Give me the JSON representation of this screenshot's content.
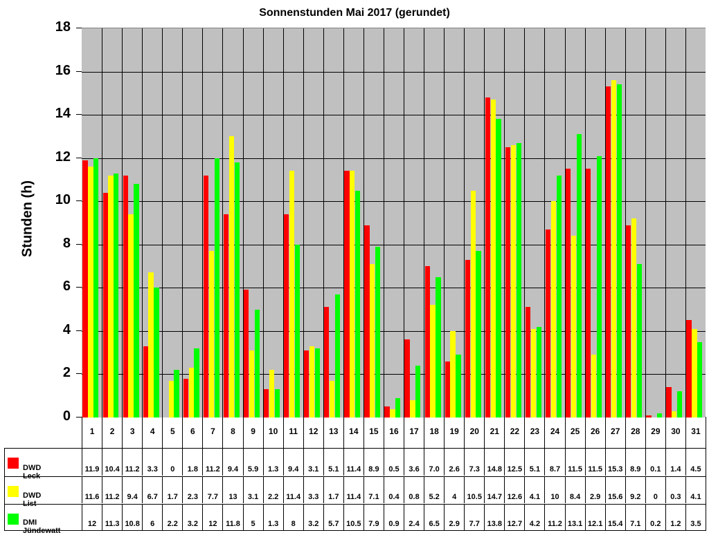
{
  "chart_data": {
    "type": "bar",
    "title": "Sonnenstunden Mai 2017 (gerundet)",
    "xlabel": "",
    "ylabel": "Stunden (h)",
    "ylim": [
      0,
      18
    ],
    "yticks": [
      0,
      2,
      4,
      6,
      8,
      10,
      12,
      14,
      16,
      18
    ],
    "grid": true,
    "legend_position": "data-table",
    "categories": [
      "1",
      "2",
      "3",
      "4",
      "5",
      "6",
      "7",
      "8",
      "9",
      "10",
      "11",
      "12",
      "13",
      "14",
      "15",
      "16",
      "17",
      "18",
      "19",
      "20",
      "21",
      "22",
      "23",
      "24",
      "25",
      "26",
      "27",
      "28",
      "29",
      "30",
      "31"
    ],
    "series": [
      {
        "name": "DWD Leck",
        "color": "#ff0000",
        "labels": [
          "11.9",
          "10.4",
          "11.2",
          "3.3",
          "0",
          "1.8",
          "11.2",
          "9.4",
          "5.9",
          "1.3",
          "9.4",
          "3.1",
          "5.1",
          "11.4",
          "8.9",
          "0.5",
          "3.6",
          "7.0",
          "2.6",
          "7.3",
          "14.8",
          "12.5",
          "5.1",
          "8.7",
          "11.5",
          "11.5",
          "15.3",
          "8.9",
          "0.1",
          "1.4",
          "4.5"
        ],
        "values": [
          11.9,
          10.4,
          11.2,
          3.3,
          0,
          1.8,
          11.2,
          9.4,
          5.9,
          1.3,
          9.4,
          3.1,
          5.1,
          11.4,
          8.9,
          0.5,
          3.6,
          7.0,
          2.6,
          7.3,
          14.8,
          12.5,
          5.1,
          8.7,
          11.5,
          11.5,
          15.3,
          8.9,
          0.1,
          1.4,
          4.5
        ]
      },
      {
        "name": "DWD List",
        "color": "#ffff00",
        "labels": [
          "11.6",
          "11.2",
          "9.4",
          "6.7",
          "1.7",
          "2.3",
          "7.7",
          "13",
          "3.1",
          "2.2",
          "11.4",
          "3.3",
          "1.7",
          "11.4",
          "7.1",
          "0.4",
          "0.8",
          "5.2",
          "4",
          "10.5",
          "14.7",
          "12.6",
          "4.1",
          "10",
          "8.4",
          "2.9",
          "15.6",
          "9.2",
          "0",
          "0.3",
          "4.1"
        ],
        "values": [
          11.6,
          11.2,
          9.4,
          6.7,
          1.7,
          2.3,
          7.7,
          13,
          3.1,
          2.2,
          11.4,
          3.3,
          1.7,
          11.4,
          7.1,
          0.4,
          0.8,
          5.2,
          4,
          10.5,
          14.7,
          12.6,
          4.1,
          10,
          8.4,
          2.9,
          15.6,
          9.2,
          0,
          0.3,
          4.1
        ]
      },
      {
        "name": "DMI Jündewatt",
        "color": "#00ff00",
        "labels": [
          "12",
          "11.3",
          "10.8",
          "6",
          "2.2",
          "3.2",
          "12",
          "11.8",
          "5",
          "1.3",
          "8",
          "3.2",
          "5.7",
          "10.5",
          "7.9",
          "0.9",
          "2.4",
          "6.5",
          "2.9",
          "7.7",
          "13.8",
          "12.7",
          "4.2",
          "11.2",
          "13.1",
          "12.1",
          "15.4",
          "7.1",
          "0.2",
          "1.2",
          "3.5"
        ],
        "values": [
          12,
          11.3,
          10.8,
          6,
          2.2,
          3.2,
          12,
          11.8,
          5,
          1.3,
          8,
          3.2,
          5.7,
          10.5,
          7.9,
          0.9,
          2.4,
          6.5,
          2.9,
          7.7,
          13.8,
          12.7,
          4.2,
          11.2,
          13.1,
          12.1,
          15.4,
          7.1,
          0.2,
          1.2,
          3.5
        ]
      }
    ]
  }
}
